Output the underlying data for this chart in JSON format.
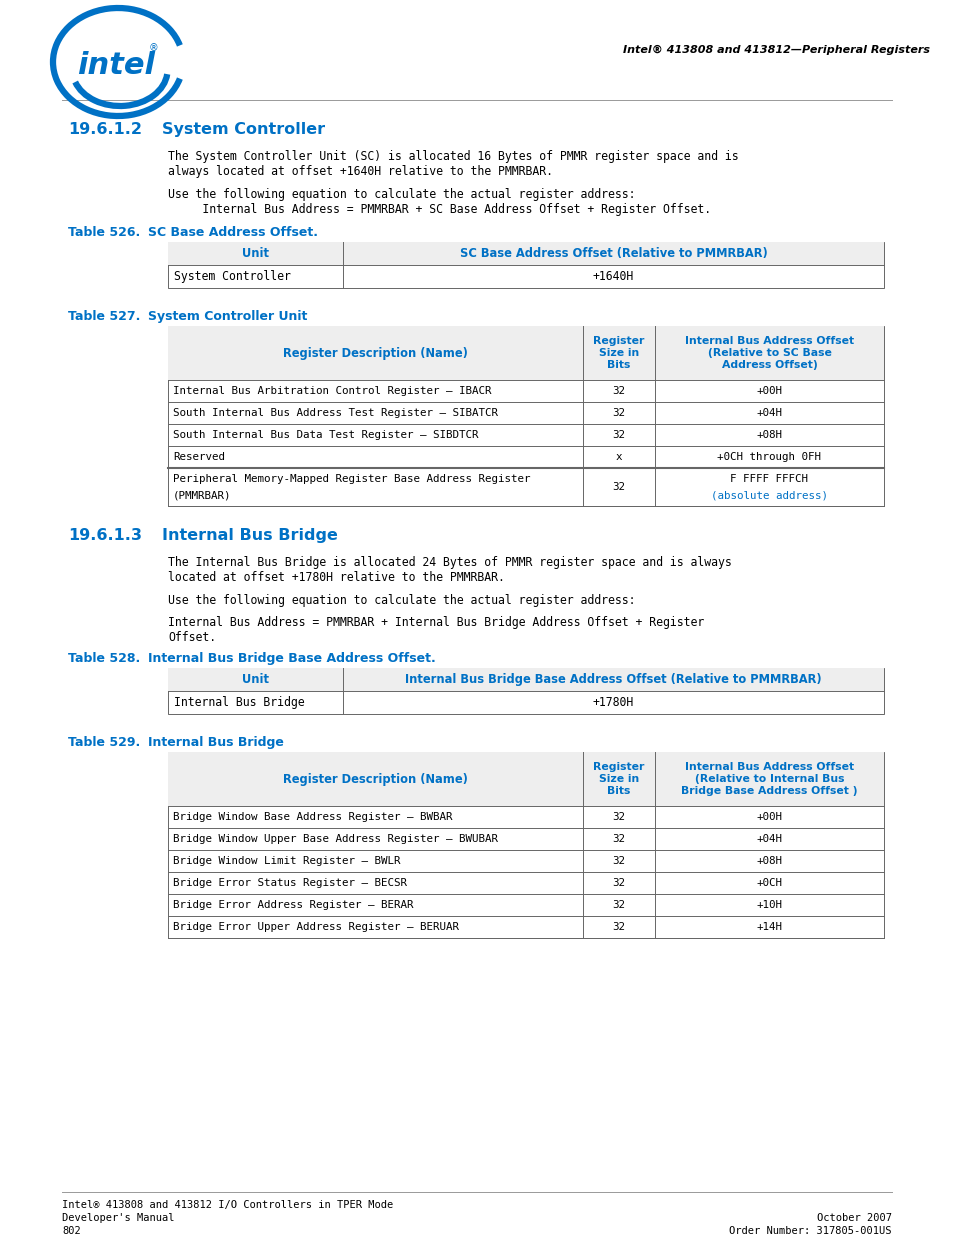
{
  "page_bg": "#ffffff",
  "intel_blue": "#0071C5",
  "text_black": "#000000",
  "header_italic_text": "Intel® 413808 and 413812—Peripheral Registers",
  "section_title_1": "19.6.1.2",
  "section_name_1": "System Controller",
  "para1_line1": "The System Controller Unit (SC) is allocated 16 Bytes of PMMR register space and is",
  "para1_line2": "always located at offset +1640H relative to the PMMRBAR.",
  "para2_line1": "Use the following equation to calculate the actual register address:",
  "para2_line2": "     Internal Bus Address = PMMRBAR + SC Base Address Offset + Register Offset.",
  "table526_title": "Table 526.",
  "table526_name": "SC Base Address Offset.",
  "table526_col1_header": "Unit",
  "table526_col2_header": "SC Base Address Offset (Relative to PMMRBAR)",
  "table526_row1_col1": "System Controller",
  "table526_row1_col2": "+1640H",
  "table527_title": "Table 527.",
  "table527_name": "System Controller Unit",
  "table527_col1_header": "Register Description (Name)",
  "table527_col2_header": "Register\nSize in\nBits",
  "table527_col3_header": "Internal Bus Address Offset\n(Relative to SC Base\nAddress Offset)",
  "table527_rows": [
    [
      "Internal Bus Arbitration Control Register — IBACR",
      "32",
      "+00H"
    ],
    [
      "South Internal Bus Address Test Register — SIBATCR",
      "32",
      "+04H"
    ],
    [
      "South Internal Bus Data Test Register — SIBDTCR",
      "32",
      "+08H"
    ],
    [
      "Reserved",
      "x",
      "+0CH through 0FH"
    ],
    [
      "Peripheral Memory-Mapped Register Base Address Register\n(PMMRBAR)",
      "32",
      "F FFFF FFFCH\n(absolute address)"
    ]
  ],
  "section_title_2": "19.6.1.3",
  "section_name_2": "Internal Bus Bridge",
  "para3_line1": "The Internal Bus Bridge is allocated 24 Bytes of PMMR register space and is always",
  "para3_line2": "located at offset +1780H relative to the PMMRBAR.",
  "para4_line1": "Use the following equation to calculate the actual register address:",
  "para5_line1": "Internal Bus Address = PMMRBAR + Internal Bus Bridge Address Offset + Register",
  "para5_line2": "Offset.",
  "table528_title": "Table 528.",
  "table528_name": "Internal Bus Bridge Base Address Offset.",
  "table528_col1_header": "Unit",
  "table528_col2_header": "Internal Bus Bridge Base Address Offset (Relative to PMMRBAR)",
  "table528_row1_col1": "Internal Bus Bridge",
  "table528_row1_col2": "+1780H",
  "table529_title": "Table 529.",
  "table529_name": "Internal Bus Bridge",
  "table529_col1_header": "Register Description (Name)",
  "table529_col2_header": "Register\nSize in\nBits",
  "table529_col3_header": "Internal Bus Address Offset\n(Relative to Internal Bus\nBridge Base Address Offset )",
  "table529_rows": [
    [
      "Bridge Window Base Address Register — BWBAR",
      "32",
      "+00H"
    ],
    [
      "Bridge Window Upper Base Address Register — BWUBAR",
      "32",
      "+04H"
    ],
    [
      "Bridge Window Limit Register — BWLR",
      "32",
      "+08H"
    ],
    [
      "Bridge Error Status Register — BECSR",
      "32",
      "+0CH"
    ],
    [
      "Bridge Error Address Register — BERAR",
      "32",
      "+10H"
    ],
    [
      "Bridge Error Upper Address Register — BERUAR",
      "32",
      "+14H"
    ]
  ],
  "footer_line1": "Intel® 413808 and 413812 I/O Controllers in TPER Mode",
  "footer_line2": "Developer's Manual",
  "footer_line3": "802",
  "footer_right1": "October 2007",
  "footer_right2": "Order Number: 317805-001US"
}
